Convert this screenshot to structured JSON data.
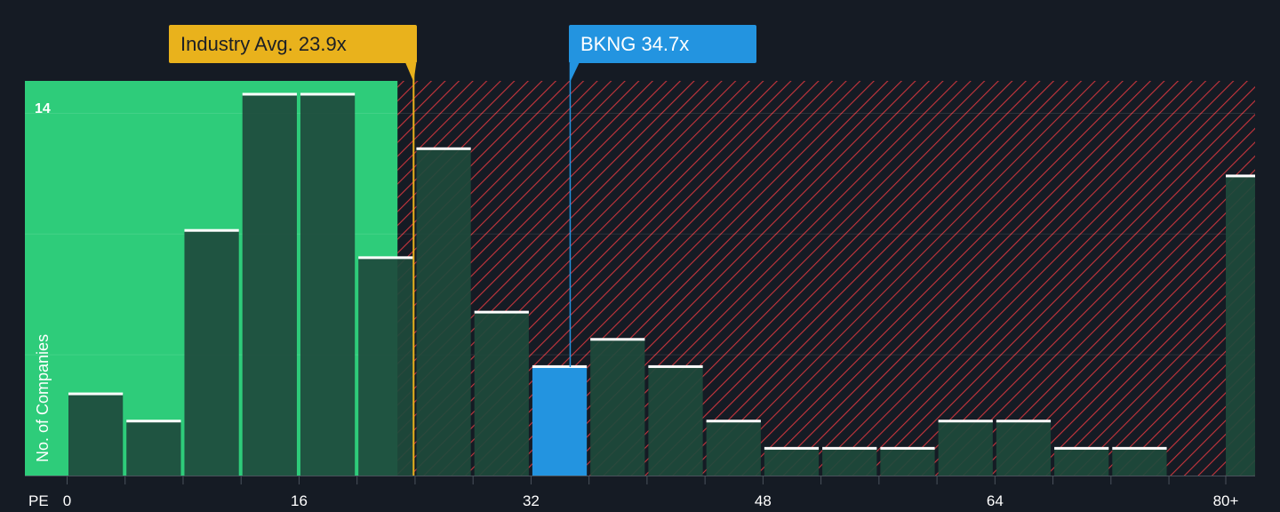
{
  "industry_label": "Industry Avg. 23.9x",
  "stock_label": "BKNG 34.7x",
  "colors": {
    "background": "#151b24",
    "fair_zone": "#2ecc7a",
    "bar_fill": "#1e4a3c",
    "expensive_hatch": "#c8353d",
    "industry": "#e9b21c",
    "stock": "#2394e0",
    "bar_top": "#ffffff"
  },
  "chart_data": {
    "type": "bar",
    "xlabel": "PE",
    "ylabel": "No. of Companies",
    "bin_width": 4,
    "xlim": [
      0,
      80
    ],
    "ylim": [
      0,
      14.5
    ],
    "y_max_label": "14",
    "x_ticks": [
      {
        "value": 0,
        "label": "0"
      },
      {
        "value": 16,
        "label": "16"
      },
      {
        "value": 32,
        "label": "32"
      },
      {
        "value": 48,
        "label": "48"
      },
      {
        "value": 64,
        "label": "64"
      },
      {
        "value": 80,
        "label": "80+"
      }
    ],
    "bins": [
      {
        "start": 0,
        "count": 3,
        "highlight": false
      },
      {
        "start": 4,
        "count": 2,
        "highlight": false
      },
      {
        "start": 8,
        "count": 9,
        "highlight": false
      },
      {
        "start": 12,
        "count": 14,
        "highlight": false
      },
      {
        "start": 16,
        "count": 14,
        "highlight": false
      },
      {
        "start": 20,
        "count": 8,
        "highlight": false
      },
      {
        "start": 24,
        "count": 12,
        "highlight": false
      },
      {
        "start": 28,
        "count": 6,
        "highlight": false
      },
      {
        "start": 32,
        "count": 4,
        "highlight": true
      },
      {
        "start": 36,
        "count": 5,
        "highlight": false
      },
      {
        "start": 40,
        "count": 4,
        "highlight": false
      },
      {
        "start": 44,
        "count": 2,
        "highlight": false
      },
      {
        "start": 48,
        "count": 1,
        "highlight": false
      },
      {
        "start": 52,
        "count": 1,
        "highlight": false
      },
      {
        "start": 56,
        "count": 1,
        "highlight": false
      },
      {
        "start": 60,
        "count": 2,
        "highlight": false
      },
      {
        "start": 64,
        "count": 2,
        "highlight": false
      },
      {
        "start": 68,
        "count": 1,
        "highlight": false
      },
      {
        "start": 72,
        "count": 1,
        "highlight": false
      },
      {
        "start": 76,
        "count": 0,
        "highlight": false
      },
      {
        "start": 80,
        "count": 11,
        "highlight": false
      }
    ],
    "industry_avg": 23.9,
    "stock_value": 34.7,
    "stock_ticker": "BKNG"
  }
}
